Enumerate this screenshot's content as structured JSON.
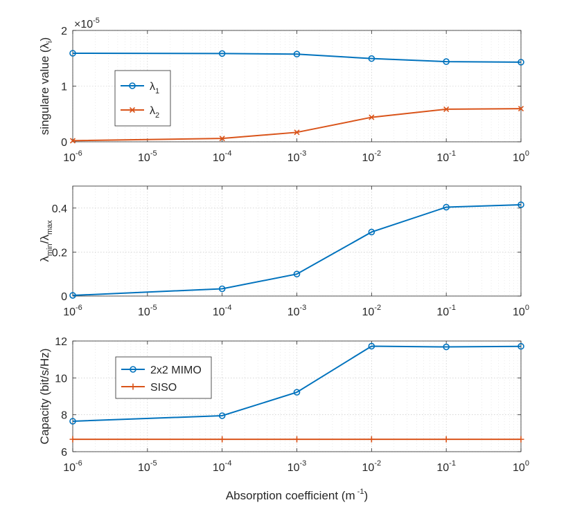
{
  "colors": {
    "series1": "#0072BD",
    "series2": "#D95319",
    "axis": "#262626"
  },
  "chart_data": [
    {
      "type": "line",
      "xscale": "log",
      "xlim": [
        1e-06,
        1
      ],
      "ylim": [
        0,
        2
      ],
      "y_exponent_label": "×10",
      "y_exponent_power": "-5",
      "xticks": [
        1e-06,
        1e-05,
        0.0001,
        0.001,
        0.01,
        0.1,
        1
      ],
      "xtick_labels": [
        {
          "base": "10",
          "exp": "-6"
        },
        {
          "base": "10",
          "exp": "-5"
        },
        {
          "base": "10",
          "exp": "-4"
        },
        {
          "base": "10",
          "exp": "-3"
        },
        {
          "base": "10",
          "exp": "-2"
        },
        {
          "base": "10",
          "exp": "-1"
        },
        {
          "base": "10",
          "exp": "0"
        }
      ],
      "yticks": [
        0,
        1,
        2
      ],
      "ytick_labels": [
        "0",
        "1",
        "2"
      ],
      "ylabel_main": "singulare value (λ",
      "ylabel_sub": "i",
      "ylabel_end": ")",
      "grid": true,
      "legend_position": "upper-left",
      "series": [
        {
          "name_main": "λ",
          "name_sub": "1",
          "marker": "circle",
          "color_key": "series1",
          "x": [
            1e-06,
            0.0001,
            0.001,
            0.01,
            0.1,
            1
          ],
          "y": [
            1.59,
            1.585,
            1.575,
            1.495,
            1.44,
            1.43
          ]
        },
        {
          "name_main": "λ",
          "name_sub": "2",
          "marker": "x",
          "color_key": "series2",
          "x": [
            1e-06,
            0.0001,
            0.001,
            0.01,
            0.1,
            1
          ],
          "y": [
            0.02,
            0.06,
            0.17,
            0.44,
            0.585,
            0.595
          ]
        }
      ]
    },
    {
      "type": "line",
      "xscale": "log",
      "xlim": [
        1e-06,
        1
      ],
      "ylim": [
        0,
        0.5
      ],
      "xticks": [
        1e-06,
        1e-05,
        0.0001,
        0.001,
        0.01,
        0.1,
        1
      ],
      "xtick_labels": [
        {
          "base": "10",
          "exp": "-6"
        },
        {
          "base": "10",
          "exp": "-5"
        },
        {
          "base": "10",
          "exp": "-4"
        },
        {
          "base": "10",
          "exp": "-3"
        },
        {
          "base": "10",
          "exp": "-2"
        },
        {
          "base": "10",
          "exp": "-1"
        },
        {
          "base": "10",
          "exp": "0"
        }
      ],
      "yticks": [
        0,
        0.2,
        0.4
      ],
      "ytick_labels": [
        "0",
        "0.2",
        "0.4"
      ],
      "ylabel_parts": [
        "λ",
        "min",
        "/λ",
        "max"
      ],
      "grid": true,
      "series": [
        {
          "marker": "circle",
          "color_key": "series1",
          "x": [
            1e-06,
            0.0001,
            0.001,
            0.01,
            0.1,
            1
          ],
          "y": [
            0.003,
            0.033,
            0.1,
            0.291,
            0.404,
            0.415
          ]
        }
      ]
    },
    {
      "type": "line",
      "xscale": "log",
      "xlim": [
        1e-06,
        1
      ],
      "ylim": [
        6,
        12
      ],
      "xticks": [
        1e-06,
        1e-05,
        0.0001,
        0.001,
        0.01,
        0.1,
        1
      ],
      "xtick_labels": [
        {
          "base": "10",
          "exp": "-6"
        },
        {
          "base": "10",
          "exp": "-5"
        },
        {
          "base": "10",
          "exp": "-4"
        },
        {
          "base": "10",
          "exp": "-3"
        },
        {
          "base": "10",
          "exp": "-2"
        },
        {
          "base": "10",
          "exp": "-1"
        },
        {
          "base": "10",
          "exp": "0"
        }
      ],
      "yticks": [
        6,
        8,
        10,
        12
      ],
      "ytick_labels": [
        "6",
        "8",
        "10",
        "12"
      ],
      "ylabel": "Capacity (bit/s/Hz)",
      "xlabel_main": "Absorption coefficient (m",
      "xlabel_sup": "-1",
      "xlabel_end": ")",
      "grid": true,
      "legend_position": "upper-left",
      "series": [
        {
          "name": "2x2 MIMO",
          "marker": "circle",
          "color_key": "series1",
          "x": [
            1e-06,
            0.0001,
            0.001,
            0.01,
            0.1,
            1
          ],
          "y": [
            7.65,
            7.95,
            9.22,
            11.72,
            11.68,
            11.71
          ]
        },
        {
          "name": "SISO",
          "marker": "plus",
          "color_key": "series2",
          "x": [
            1e-06,
            0.0001,
            0.001,
            0.01,
            0.1,
            1
          ],
          "y": [
            6.67,
            6.67,
            6.67,
            6.67,
            6.67,
            6.67
          ]
        }
      ]
    }
  ]
}
